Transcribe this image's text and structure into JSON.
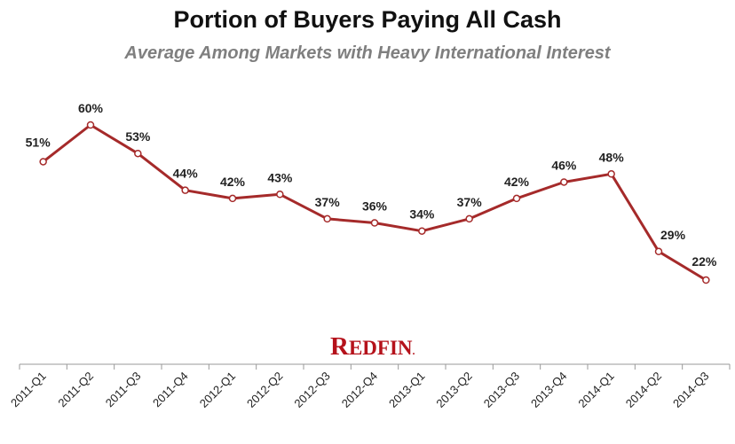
{
  "chart_data": {
    "type": "line",
    "title": "Portion of Buyers Paying All Cash",
    "subtitle": "Average Among Markets with Heavy International Interest",
    "xlabel": "",
    "ylabel": "",
    "categories": [
      "2011-Q1",
      "2011-Q2",
      "2011-Q3",
      "2011-Q4",
      "2012-Q1",
      "2012-Q2",
      "2012-Q3",
      "2012-Q4",
      "2013-Q1",
      "2013-Q2",
      "2013-Q3",
      "2013-Q4",
      "2014-Q1",
      "2014-Q2",
      "2014-Q3"
    ],
    "values": [
      51,
      60,
      53,
      44,
      42,
      43,
      37,
      36,
      34,
      37,
      42,
      46,
      48,
      29,
      22
    ],
    "value_labels": [
      "51%",
      "60%",
      "53%",
      "44%",
      "42%",
      "43%",
      "37%",
      "36%",
      "34%",
      "37%",
      "42%",
      "46%",
      "48%",
      "29%",
      "22%"
    ],
    "ylim": [
      0,
      75
    ],
    "grid": false,
    "legend": "none",
    "colors": {
      "line": "#a52a2a",
      "marker_fill": "#ffffff",
      "subtitle": "#7f7f7f",
      "axis": "#999999",
      "logo": "#b5121b"
    }
  },
  "logo": {
    "text": "REDFIN",
    "mark": "."
  }
}
